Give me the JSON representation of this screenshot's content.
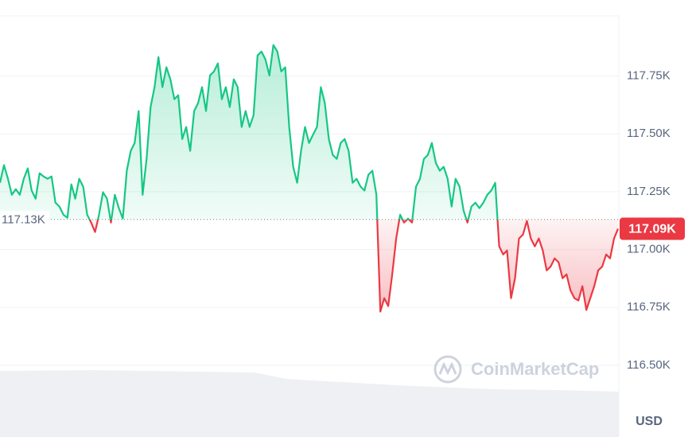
{
  "chart_data": {
    "type": "line",
    "values": [
      117289,
      117365,
      117306,
      117237,
      117261,
      117237,
      117306,
      117351,
      117255,
      117220,
      117330,
      117316,
      117306,
      117316,
      117203,
      117186,
      117151,
      117138,
      117282,
      117220,
      117306,
      117272,
      117151,
      117117,
      117076,
      117151,
      117248,
      117220,
      117117,
      117237,
      117179,
      117134,
      117341,
      117427,
      117461,
      117599,
      117237,
      117392,
      117616,
      117702,
      117832,
      117702,
      117788,
      117736,
      117650,
      117667,
      117478,
      117530,
      117427,
      117599,
      117633,
      117702,
      117599,
      117753,
      117770,
      117805,
      117650,
      117702,
      117616,
      117736,
      117702,
      117530,
      117599,
      117530,
      117581,
      117839,
      117856,
      117822,
      117753,
      117884,
      117856,
      117770,
      117788,
      117530,
      117358,
      117289,
      117427,
      117530,
      117461,
      117496,
      117530,
      117702,
      117633,
      117478,
      117409,
      117392,
      117461,
      117478,
      117427,
      117289,
      117306,
      117272,
      117255,
      117324,
      117341,
      117237,
      116732,
      116790,
      116756,
      116893,
      117048,
      117151,
      117117,
      117134,
      117117,
      117272,
      117306,
      117392,
      117409,
      117461,
      117375,
      117341,
      117358,
      117306,
      117186,
      117306,
      117272,
      117169,
      117117,
      117186,
      117203,
      117179,
      117203,
      117237,
      117255,
      117289,
      117014,
      116979,
      116996,
      116790,
      116876,
      117048,
      117065,
      117124,
      117048,
      117014,
      117048,
      116996,
      116910,
      116927,
      116962,
      116945,
      116876,
      116893,
      116824,
      116790,
      116780,
      116842,
      116739,
      116790,
      116842,
      116910,
      116927,
      116979,
      116962,
      117048,
      117090
    ],
    "color_up": "#16c784",
    "color_down": "#ea3943",
    "baseline": {
      "value": 117130,
      "label": "117.13K"
    },
    "current": {
      "value": 117090,
      "label": "117.09K"
    },
    "ylim": [
      116190,
      118010
    ],
    "yticks": [
      {
        "value": 116500,
        "label": "116.50K"
      },
      {
        "value": 116750,
        "label": "116.75K"
      },
      {
        "value": 117000,
        "label": "117.00K"
      },
      {
        "value": 117250,
        "label": "117.25K"
      },
      {
        "value": 117500,
        "label": "117.50K"
      },
      {
        "value": 117750,
        "label": "117.75K"
      }
    ],
    "grid": true,
    "currency": "USD",
    "watermark": "CoinMarketCap"
  }
}
